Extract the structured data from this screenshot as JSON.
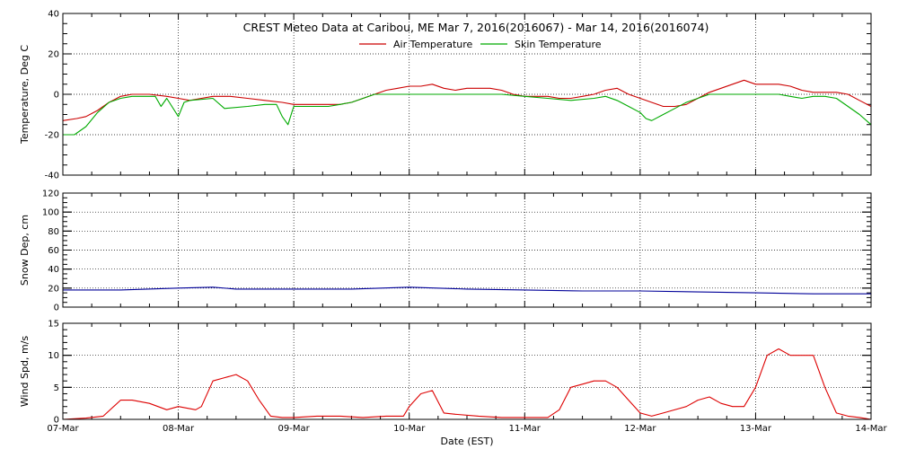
{
  "chart_data": {
    "type": "line",
    "title": "CREST Meteo Data at Caribou, ME   Mar  7, 2016(2016067) - Mar 14, 2016(2016074)",
    "xlabel": "Date (EST)",
    "x_ticks": [
      "07-Mar",
      "08-Mar",
      "09-Mar",
      "10-Mar",
      "11-Mar",
      "12-Mar",
      "13-Mar",
      "14-Mar"
    ],
    "xlim_days": [
      0,
      7
    ],
    "grid": true,
    "panels": [
      {
        "ylabel": "Temperature, Deg C",
        "ylim": [
          -40,
          40
        ],
        "y_ticks": [
          -40,
          -20,
          0,
          20,
          40
        ],
        "legend": "top-center",
        "series": [
          {
            "name": "Air Temperature",
            "color": "#cc0000",
            "x": [
              0.0,
              0.12,
              0.2,
              0.3,
              0.4,
              0.5,
              0.6,
              0.75,
              0.9,
              1.0,
              1.1,
              1.2,
              1.3,
              1.45,
              1.6,
              1.75,
              1.9,
              2.0,
              2.1,
              2.2,
              2.3,
              2.4,
              2.5,
              2.6,
              2.7,
              2.8,
              2.9,
              3.0,
              3.1,
              3.2,
              3.3,
              3.4,
              3.5,
              3.6,
              3.7,
              3.8,
              3.9,
              4.0,
              4.1,
              4.2,
              4.3,
              4.4,
              4.5,
              4.6,
              4.7,
              4.8,
              4.9,
              5.0,
              5.1,
              5.2,
              5.3,
              5.4,
              5.5,
              5.6,
              5.7,
              5.8,
              5.9,
              6.0,
              6.1,
              6.2,
              6.3,
              6.4,
              6.5,
              6.6,
              6.7,
              6.8,
              6.9,
              7.0
            ],
            "y": [
              -13,
              -12,
              -11,
              -8,
              -4,
              -1,
              0,
              0,
              -1,
              -2,
              -3,
              -2,
              -1,
              -1,
              -2,
              -3,
              -4,
              -5,
              -5,
              -5,
              -5,
              -5,
              -4,
              -2,
              0,
              2,
              3,
              4,
              4,
              5,
              3,
              2,
              3,
              3,
              3,
              2,
              0,
              -1,
              -1,
              -1,
              -2,
              -2,
              -1,
              0,
              2,
              3,
              0,
              -2,
              -4,
              -6,
              -6,
              -5,
              -2,
              1,
              3,
              5,
              7,
              5,
              5,
              5,
              4,
              2,
              1,
              1,
              1,
              0,
              -3,
              -6
            ]
          },
          {
            "name": "Skin Temperature",
            "color": "#00aa00",
            "x": [
              0.0,
              0.1,
              0.2,
              0.3,
              0.4,
              0.5,
              0.6,
              0.7,
              0.8,
              0.85,
              0.9,
              1.0,
              1.05,
              1.1,
              1.3,
              1.4,
              1.6,
              1.75,
              1.85,
              1.9,
              1.95,
              2.0,
              2.1,
              2.2,
              2.3,
              2.4,
              2.5,
              2.6,
              2.7,
              2.8,
              3.0,
              3.2,
              3.4,
              3.6,
              3.8,
              4.0,
              4.2,
              4.4,
              4.6,
              4.7,
              4.8,
              4.9,
              5.0,
              5.05,
              5.1,
              5.2,
              5.3,
              5.4,
              5.5,
              5.6,
              5.8,
              6.0,
              6.2,
              6.3,
              6.4,
              6.5,
              6.6,
              6.7,
              6.8,
              6.9,
              7.0
            ],
            "y": [
              -20,
              -20,
              -16,
              -9,
              -4,
              -2,
              -1,
              -1,
              -1,
              -6,
              -2,
              -11,
              -4,
              -3,
              -2,
              -7,
              -6,
              -5,
              -5,
              -11,
              -15,
              -6,
              -6,
              -6,
              -6,
              -5,
              -4,
              -2,
              0,
              0,
              0,
              0,
              0,
              0,
              0,
              -1,
              -2,
              -3,
              -2,
              -1,
              -3,
              -6,
              -9,
              -12,
              -13,
              -10,
              -7,
              -4,
              -2,
              0,
              0,
              0,
              0,
              -1,
              -2,
              -1,
              -1,
              -2,
              -6,
              -10,
              -15
            ]
          }
        ]
      },
      {
        "ylabel": "Snow Dep, cm",
        "ylim": [
          0,
          120
        ],
        "y_ticks": [
          0,
          20,
          40,
          60,
          80,
          100,
          120
        ],
        "series": [
          {
            "color": "#000099",
            "x": [
              0.0,
              0.5,
              1.0,
              1.3,
              1.5,
              2.0,
              2.5,
              3.0,
              3.5,
              4.0,
              4.5,
              5.0,
              5.5,
              6.0,
              6.5,
              7.0
            ],
            "y": [
              18,
              18,
              20,
              21,
              19,
              19,
              19,
              21,
              19,
              18,
              17,
              17,
              16,
              15,
              14,
              14
            ]
          }
        ]
      },
      {
        "ylabel": "Wind Spd, m/s",
        "ylim": [
          0,
          15
        ],
        "y_ticks": [
          0,
          5,
          10,
          15
        ],
        "series": [
          {
            "color": "#dd0000",
            "x": [
              0.0,
              0.2,
              0.35,
              0.5,
              0.6,
              0.75,
              0.9,
              1.0,
              1.15,
              1.2,
              1.3,
              1.4,
              1.5,
              1.6,
              1.7,
              1.8,
              1.9,
              2.0,
              2.2,
              2.4,
              2.6,
              2.8,
              2.95,
              3.0,
              3.1,
              3.2,
              3.3,
              3.4,
              3.6,
              3.8,
              4.0,
              4.2,
              4.3,
              4.4,
              4.5,
              4.6,
              4.7,
              4.8,
              4.9,
              5.0,
              5.1,
              5.2,
              5.4,
              5.5,
              5.6,
              5.7,
              5.8,
              5.9,
              6.0,
              6.1,
              6.2,
              6.3,
              6.4,
              6.5,
              6.6,
              6.7,
              6.8,
              6.9,
              7.0
            ],
            "y": [
              0,
              0.2,
              0.5,
              3,
              3,
              2.5,
              1.5,
              2,
              1.5,
              2,
              6,
              6.5,
              7,
              6,
              3,
              0.5,
              0.3,
              0.3,
              0.5,
              0.5,
              0.3,
              0.5,
              0.5,
              2,
              4,
              4.5,
              1,
              0.8,
              0.5,
              0.3,
              0.3,
              0.3,
              1.5,
              5,
              5.5,
              6,
              6,
              5,
              3,
              1,
              0.5,
              1,
              2,
              3,
              3.5,
              2.5,
              2,
              2,
              5,
              10,
              11,
              10,
              10,
              10,
              5,
              1,
              0.5,
              0.3,
              0
            ]
          }
        ]
      }
    ]
  }
}
